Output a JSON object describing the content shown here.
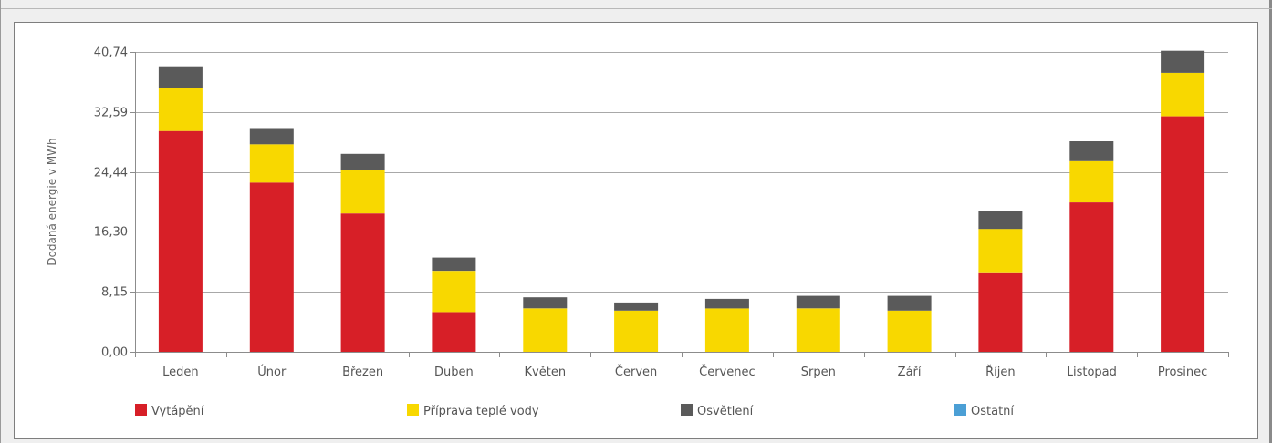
{
  "chart_data": {
    "type": "bar",
    "stacked": true,
    "title": "",
    "xlabel": "",
    "ylabel": "Dodaná energie v MWh",
    "ylim": [
      0,
      40.74
    ],
    "yticks": [
      "0,00",
      "8,15",
      "16,30",
      "24,44",
      "32,59",
      "40,74"
    ],
    "grid": true,
    "legend_position": "bottom",
    "categories": [
      "Leden",
      "Únor",
      "Březen",
      "Duben",
      "Květen",
      "Červen",
      "Červenec",
      "Srpen",
      "Září",
      "Říjen",
      "Listopad",
      "Prosinec"
    ],
    "series": [
      {
        "name": "Vytápění",
        "color": "#d71f27",
        "values": [
          30.0,
          23.0,
          18.8,
          5.4,
          0,
          0,
          0,
          0,
          0,
          10.8,
          20.3,
          32.0
        ]
      },
      {
        "name": "Příprava teplé vody",
        "color": "#f8d800",
        "values": [
          5.9,
          5.2,
          5.9,
          5.6,
          5.9,
          5.6,
          5.9,
          5.9,
          5.6,
          5.9,
          5.6,
          5.9
        ]
      },
      {
        "name": "Osvětlení",
        "color": "#5a5a5a",
        "values": [
          2.9,
          2.2,
          2.2,
          1.8,
          1.5,
          1.1,
          1.3,
          1.7,
          2.0,
          2.4,
          2.7,
          3.0
        ]
      },
      {
        "name": "Ostatní",
        "color": "#4b9fd5",
        "values": [
          0,
          0,
          0,
          0,
          0,
          0,
          0,
          0,
          0,
          0,
          0,
          0
        ]
      }
    ]
  }
}
